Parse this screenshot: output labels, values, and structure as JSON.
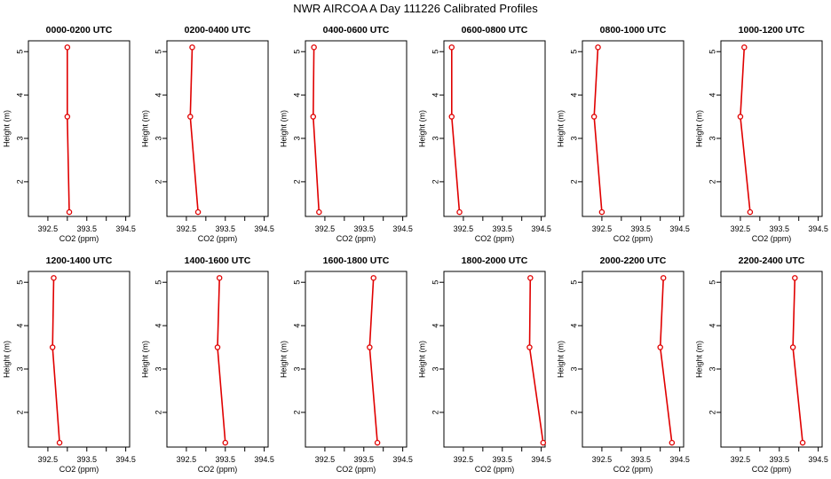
{
  "title": "NWR AIRCOA A  Day 111226  Calibrated Profiles",
  "chart_data": [
    {
      "type": "line",
      "title": "0000-0200 UTC",
      "xlabel": "CO2 (ppm)",
      "ylabel": "Height (m)",
      "xlim": [
        392.0,
        394.6
      ],
      "ylim": [
        1.2,
        5.25
      ],
      "xticks": [
        392.5,
        393.5,
        394.5
      ],
      "yticks": [
        2,
        3,
        4,
        5
      ],
      "series": [
        {
          "x": [
            393.05,
            393.0,
            393.0
          ],
          "y": [
            1.3,
            3.5,
            5.1
          ]
        }
      ]
    },
    {
      "type": "line",
      "title": "0200-0400 UTC",
      "xlabel": "CO2 (ppm)",
      "ylabel": "Height (m)",
      "xlim": [
        392.0,
        394.6
      ],
      "ylim": [
        1.2,
        5.25
      ],
      "xticks": [
        392.5,
        393.5,
        394.5
      ],
      "yticks": [
        2,
        3,
        4,
        5
      ],
      "series": [
        {
          "x": [
            392.8,
            392.6,
            392.65
          ],
          "y": [
            1.3,
            3.5,
            5.1
          ]
        }
      ]
    },
    {
      "type": "line",
      "title": "0400-0600 UTC",
      "xlabel": "CO2 (ppm)",
      "ylabel": "Height (m)",
      "xlim": [
        392.0,
        394.6
      ],
      "ylim": [
        1.2,
        5.25
      ],
      "xticks": [
        392.5,
        393.5,
        394.5
      ],
      "yticks": [
        2,
        3,
        4,
        5
      ],
      "series": [
        {
          "x": [
            392.35,
            392.2,
            392.22
          ],
          "y": [
            1.3,
            3.5,
            5.1
          ]
        }
      ]
    },
    {
      "type": "line",
      "title": "0600-0800 UTC",
      "xlabel": "CO2 (ppm)",
      "ylabel": "Height (m)",
      "xlim": [
        392.0,
        394.6
      ],
      "ylim": [
        1.2,
        5.25
      ],
      "xticks": [
        392.5,
        393.5,
        394.5
      ],
      "yticks": [
        2,
        3,
        4,
        5
      ],
      "series": [
        {
          "x": [
            392.4,
            392.2,
            392.2
          ],
          "y": [
            1.3,
            3.5,
            5.1
          ]
        }
      ]
    },
    {
      "type": "line",
      "title": "0800-1000 UTC",
      "xlabel": "CO2 (ppm)",
      "ylabel": "Height (m)",
      "xlim": [
        392.0,
        394.6
      ],
      "ylim": [
        1.2,
        5.25
      ],
      "xticks": [
        392.5,
        393.5,
        394.5
      ],
      "yticks": [
        2,
        3,
        4,
        5
      ],
      "series": [
        {
          "x": [
            392.5,
            392.3,
            392.4
          ],
          "y": [
            1.3,
            3.5,
            5.1
          ]
        }
      ]
    },
    {
      "type": "line",
      "title": "1000-1200 UTC",
      "xlabel": "CO2 (ppm)",
      "ylabel": "Height (m)",
      "xlim": [
        392.0,
        394.6
      ],
      "ylim": [
        1.2,
        5.25
      ],
      "xticks": [
        392.5,
        393.5,
        394.5
      ],
      "yticks": [
        2,
        3,
        4,
        5
      ],
      "series": [
        {
          "x": [
            392.75,
            392.5,
            392.6
          ],
          "y": [
            1.3,
            3.5,
            5.1
          ]
        }
      ]
    },
    {
      "type": "line",
      "title": "1200-1400 UTC",
      "xlabel": "CO2 (ppm)",
      "ylabel": "Height (m)",
      "xlim": [
        392.0,
        394.6
      ],
      "ylim": [
        1.2,
        5.25
      ],
      "xticks": [
        392.5,
        393.5,
        394.5
      ],
      "yticks": [
        2,
        3,
        4,
        5
      ],
      "series": [
        {
          "x": [
            392.8,
            392.62,
            392.65
          ],
          "y": [
            1.3,
            3.5,
            5.1
          ]
        }
      ]
    },
    {
      "type": "line",
      "title": "1400-1600 UTC",
      "xlabel": "CO2 (ppm)",
      "ylabel": "Height (m)",
      "xlim": [
        392.0,
        394.6
      ],
      "ylim": [
        1.2,
        5.25
      ],
      "xticks": [
        392.5,
        393.5,
        394.5
      ],
      "yticks": [
        2,
        3,
        4,
        5
      ],
      "series": [
        {
          "x": [
            393.5,
            393.3,
            393.35
          ],
          "y": [
            1.3,
            3.5,
            5.1
          ]
        }
      ]
    },
    {
      "type": "line",
      "title": "1600-1800 UTC",
      "xlabel": "CO2 (ppm)",
      "ylabel": "Height (m)",
      "xlim": [
        392.0,
        394.6
      ],
      "ylim": [
        1.2,
        5.25
      ],
      "xticks": [
        392.5,
        393.5,
        394.5
      ],
      "yticks": [
        2,
        3,
        4,
        5
      ],
      "series": [
        {
          "x": [
            393.85,
            393.65,
            393.75
          ],
          "y": [
            1.3,
            3.5,
            5.1
          ]
        }
      ]
    },
    {
      "type": "line",
      "title": "1800-2000 UTC",
      "xlabel": "CO2 (ppm)",
      "ylabel": "Height (m)",
      "xlim": [
        392.0,
        394.6
      ],
      "ylim": [
        1.2,
        5.25
      ],
      "xticks": [
        392.5,
        393.5,
        394.5
      ],
      "yticks": [
        2,
        3,
        4,
        5
      ],
      "series": [
        {
          "x": [
            394.55,
            394.2,
            394.22
          ],
          "y": [
            1.3,
            3.5,
            5.1
          ]
        }
      ]
    },
    {
      "type": "line",
      "title": "2000-2200 UTC",
      "xlabel": "CO2 (ppm)",
      "ylabel": "Height (m)",
      "xlim": [
        392.0,
        394.6
      ],
      "ylim": [
        1.2,
        5.25
      ],
      "xticks": [
        392.5,
        393.5,
        394.5
      ],
      "yticks": [
        2,
        3,
        4,
        5
      ],
      "series": [
        {
          "x": [
            394.3,
            394.0,
            394.08
          ],
          "y": [
            1.3,
            3.5,
            5.1
          ]
        }
      ]
    },
    {
      "type": "line",
      "title": "2200-2400 UTC",
      "xlabel": "CO2 (ppm)",
      "ylabel": "Height (m)",
      "xlim": [
        392.0,
        394.6
      ],
      "ylim": [
        1.2,
        5.25
      ],
      "xticks": [
        392.5,
        393.5,
        394.5
      ],
      "yticks": [
        2,
        3,
        4,
        5
      ],
      "series": [
        {
          "x": [
            394.1,
            393.85,
            393.9
          ],
          "y": [
            1.3,
            3.5,
            5.1
          ]
        }
      ]
    }
  ],
  "colors": {
    "line": "#e00000",
    "axis": "#000000"
  }
}
